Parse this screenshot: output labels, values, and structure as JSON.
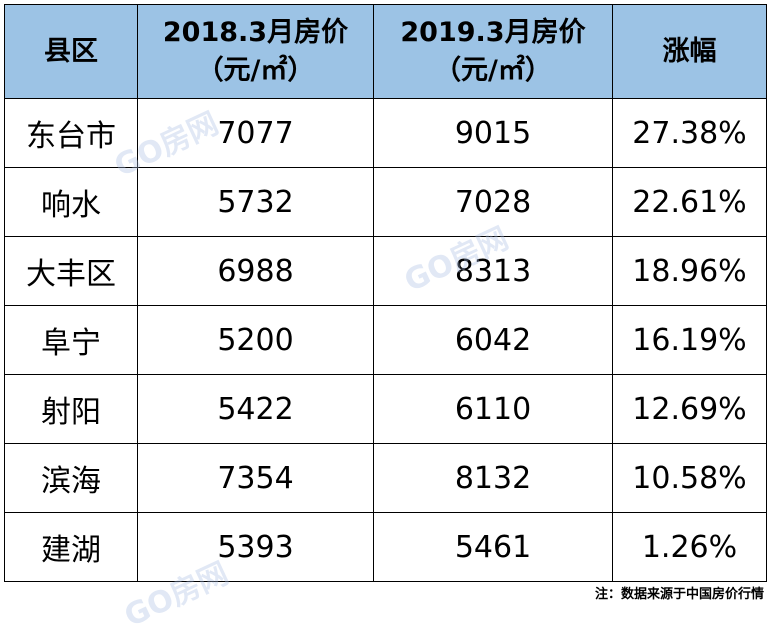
{
  "table": {
    "header": [
      [
        "县区"
      ],
      [
        "2018.3月房价",
        "（元/㎡）"
      ],
      [
        "2019.3月房价",
        "（元/㎡）"
      ],
      [
        "涨幅"
      ]
    ],
    "rows": [
      [
        "东台市",
        "7077",
        "9015",
        "27.38%"
      ],
      [
        "响水",
        "5732",
        "7028",
        "22.61%"
      ],
      [
        "大丰区",
        "6988",
        "8313",
        "18.96%"
      ],
      [
        "阜宁",
        "5200",
        "6042",
        "16.19%"
      ],
      [
        "射阳",
        "5422",
        "6110",
        "12.69%"
      ],
      [
        "滨海",
        "7354",
        "8132",
        "10.58%"
      ],
      [
        "建湖",
        "5393",
        "5461",
        "1.26%"
      ]
    ]
  },
  "note": "注：数据来源于中国房价行情",
  "watermark": "GO房网"
}
